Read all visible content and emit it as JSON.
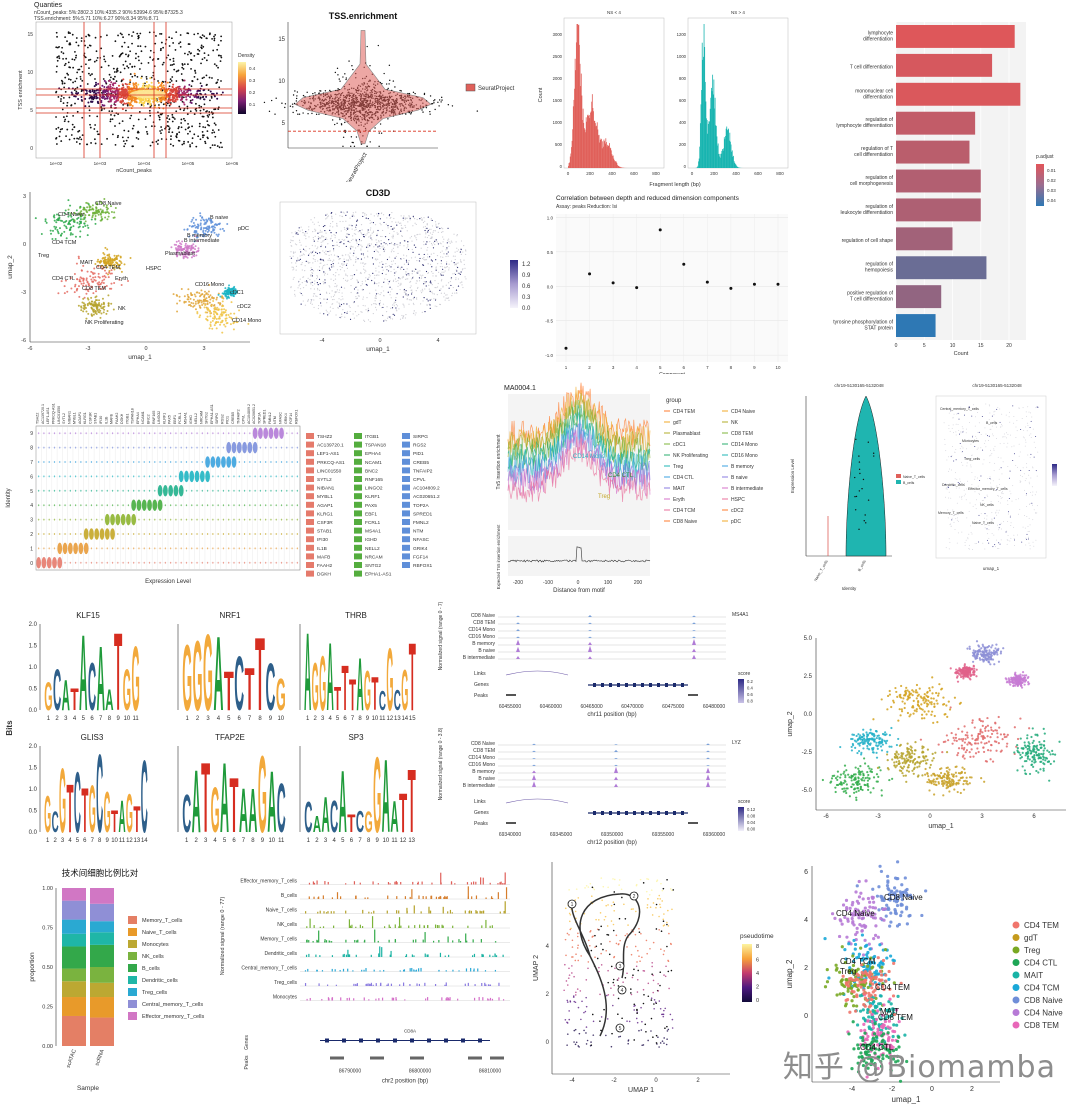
{
  "watermark": "知乎 @Biomamba",
  "chart_data": [
    {
      "id": "p1",
      "type": "scatter",
      "title": "Quanties",
      "subtitle_lines": [
        "nCount_peaks: 5%:2802.3 10%:4335.2 90%:53994.6 95%:87325.3",
        "TSS.enrichment: 5%:5.71 10%:6.27 90%:8.34 95%:8.71"
      ],
      "xlabel": "nCount_peaks",
      "ylabel": "TSS enrichment",
      "xticks": [
        "1e+02",
        "1e+03",
        "1e+04",
        "1e+05",
        "1e+06"
      ],
      "yticks": [
        "0",
        "5",
        "10",
        "15"
      ],
      "legend_title": "Density",
      "legend_ticks": [
        "0.4",
        "0.3",
        "0.2",
        "0.1"
      ]
    },
    {
      "id": "p2",
      "type": "violin",
      "title": "TSS.enrichment",
      "categories": [
        "SeuratProject"
      ],
      "yticks": [
        "5",
        "10",
        "15"
      ],
      "legend": [
        "SeuratProject"
      ],
      "threshold": 4
    },
    {
      "id": "p3",
      "type": "bar",
      "title_left": "NS < 4",
      "title_right": "NS > 4",
      "xlabel": "Fragment length (bp)",
      "ylabel": "Count",
      "xticks": [
        "0",
        "200",
        "400",
        "600",
        "800"
      ],
      "yticks_left": [
        "0",
        "500",
        "1000",
        "1500",
        "2000",
        "2500",
        "3000"
      ],
      "yticks_right": [
        "0",
        "200",
        "400",
        "600",
        "800",
        "1000",
        "1200"
      ]
    },
    {
      "id": "p4",
      "type": "bar",
      "orientation": "horizontal",
      "categories": [
        "lymphocyte differentiation",
        "T cell differentiation",
        "mononuclear cell differentiation",
        "regulation of lymphocyte differentiation",
        "regulation of T cell differentiation",
        "regulation of cell morphogenesis",
        "regulation of leukocyte differentiation",
        "regulation of cell shape",
        "regulation of hemopoiesis",
        "positive regulation of T cell differentiation",
        "tyrosine phosphorylation of STAT protein"
      ],
      "values": [
        21,
        17,
        22,
        14,
        13,
        15,
        15,
        10,
        16,
        8,
        7
      ],
      "padjust": [
        0.001,
        0.003,
        0.002,
        0.008,
        0.01,
        0.012,
        0.013,
        0.016,
        0.03,
        0.02,
        0.045
      ],
      "xlabel": "Count",
      "xticks": [
        "0",
        "5",
        "10",
        "15",
        "20"
      ],
      "xlim": [
        0,
        23
      ],
      "legend_title": "p.adjust",
      "legend_ticks": [
        "0.01",
        "0.02",
        "0.03",
        "0.04"
      ]
    },
    {
      "id": "p5",
      "type": "scatter",
      "xlabel": "umap_1",
      "ylabel": "umap_2",
      "xticks": [
        "-6",
        "-3",
        "0",
        "3"
      ],
      "yticks": [
        "-6",
        "-3",
        "0",
        "3"
      ],
      "labels": [
        "CD8 Naive",
        "CD4 Naive",
        "CD4 TCM",
        "Treg",
        "MAIT",
        "CD4 TEM",
        "CD4 CTL",
        "CD8 TEM",
        "Eryth",
        "NK Proliferating",
        "NK",
        "HSPC",
        "Plasmablast",
        "B memory",
        "B intermediate",
        "B naive",
        "pDC",
        "CD16 Mono",
        "cDC1",
        "cDC2",
        "CD14 Mono"
      ]
    },
    {
      "id": "p6",
      "type": "scatter",
      "title": "CD3D",
      "xlabel": "umap_1",
      "xticks": [
        "-4",
        "0",
        "4"
      ],
      "legend_ticks": [
        "1.2",
        "0.9",
        "0.6",
        "0.3",
        "0.0"
      ]
    },
    {
      "id": "p7",
      "type": "scatter",
      "title": "Correlation between depth and reduced dimension components",
      "subtitle": "Assay: peaks   Reduction: lsi",
      "xlabel": "Component",
      "x": [
        1,
        2,
        3,
        4,
        5,
        6,
        7,
        8,
        9,
        10
      ],
      "y": [
        -0.9,
        0.18,
        0.05,
        -0.02,
        0.82,
        0.32,
        0.06,
        -0.03,
        0.03,
        0.03
      ],
      "yticks": [
        "-1.0",
        "-0.5",
        "0.0",
        "0.5",
        "1.0"
      ],
      "ylim": [
        -1.1,
        1.05
      ]
    },
    {
      "id": "p8",
      "type": "violin",
      "xlabel": "Expression Level",
      "ylabel": "Identity",
      "identities": [
        "0",
        "1",
        "2",
        "3",
        "4",
        "5",
        "6",
        "7",
        "8",
        "9"
      ],
      "legend_columns": [
        [
          "TSHZ2",
          "AC139720.1",
          "LEF1-AS1",
          "PRKCQ-AS1",
          "LINC01550",
          "SYTL2",
          "NIBAN1",
          "MYBL1",
          "AGAP1",
          "KLRG1",
          "CSF3R",
          "STAB1",
          "IFI30",
          "IL1B",
          "MAFB",
          "FAAH2",
          "DGKH"
        ],
        [
          "ITGB1",
          "TSPAN18",
          "EPHA4",
          "NCAM1",
          "BNC2",
          "RNF165",
          "LINGO2",
          "KLRF1",
          "PAX5",
          "EBF1",
          "FCRL1",
          "MS4A1",
          "IGHD",
          "NELL2",
          "NRCAM",
          "SNTG2",
          "EPHA1-AS1"
        ],
        [
          "SIRPG",
          "RGS2",
          "PID1",
          "CREB5",
          "TNFAIP2",
          "CPVL",
          "AC104809.2",
          "AC020651.2",
          "TOP2A",
          "SPRED1",
          "FMNL2",
          "NTM",
          "NFASC",
          "GRIK4",
          "FGF14",
          "RBFOX1"
        ]
      ]
    },
    {
      "id": "p9",
      "type": "line",
      "title": "MA0004.1",
      "xlabel": "Distance from motif",
      "ylabel_top": "Tn5 insertion enrichment",
      "ylabel_bottom": "Expected Tn5 insertion enrichment",
      "xticks": [
        "-200",
        "-100",
        "0",
        "100",
        "200"
      ],
      "annotations": [
        "CD14 Mono",
        "CD4 CTL",
        "Treg"
      ],
      "legend_title": "group",
      "groups": [
        "CD4 TEM",
        "gdT",
        "Plasmablast",
        "cDC1",
        "NK Proliferating",
        "Treg",
        "CD4 CTL",
        "MAIT",
        "Eryth",
        "CD4 TCM",
        "CD8 Naive",
        "CD4 Naive",
        "NK",
        "CD8 TEM",
        "CD14 Mono",
        "CD16 Mono",
        "B memory",
        "B naive",
        "B intermediate",
        "HSPC",
        "cDC2",
        "pDC"
      ]
    },
    {
      "id": "p10",
      "type": "violin",
      "title": "chr19-5130165-5132048",
      "categories": [
        "Naive_T_cells",
        "B_cells"
      ],
      "ylabel": "Expression Level",
      "xlabel": "Identity",
      "legend": [
        "Naive_T_cells",
        "B_cells"
      ]
    },
    {
      "id": "p11",
      "type": "scatter",
      "title": "chr19-5130165-5132048",
      "xlabel": "umap_1",
      "labels": [
        "Central_memory_T_cells",
        "B_cells",
        "Monocytes",
        "Treg_cells",
        "Dendritic_cells",
        "Effector_memory_T_cells",
        "Memory_T_cells",
        "NK_cells",
        "Naive_T_cells"
      ]
    },
    {
      "id": "p12",
      "type": "other",
      "ylabel": "Bits",
      "motifs": [
        "KLF15",
        "NRF1",
        "THRB",
        "GLIS3",
        "TFAP2E",
        "SP3"
      ],
      "yticks": [
        "0.0",
        "0.5",
        "1.0",
        "1.5",
        "2.0"
      ],
      "positions": [
        11,
        10,
        15,
        14,
        11,
        13
      ]
    },
    {
      "id": "p13",
      "type": "area",
      "xlabel": "chr11 position (bp)",
      "xticks": [
        "60455000",
        "60460000",
        "60465000",
        "60470000",
        "60475000",
        "60480000"
      ],
      "gene": "MS4A1",
      "ylabel": "Normalized signal (range 0 - 7)",
      "tracks": [
        "CD8 Naive",
        "CD8 TEM",
        "CD14 Mono",
        "CD16 Mono",
        "B memory",
        "B naive",
        "B intermediate"
      ],
      "side": [
        "Links",
        "Genes",
        "Peaks"
      ],
      "score_title": "score",
      "score_ticks": [
        "0.2",
        "0.4",
        "0.6",
        "0.8"
      ]
    },
    {
      "id": "p14",
      "type": "area",
      "xlabel": "chr12 position (bp)",
      "xticks": [
        "69340000",
        "69345000",
        "69350000",
        "69355000",
        "69360000"
      ],
      "gene": "LYZ",
      "ylabel": "Normalized signal (range 0 - 3.8)",
      "tracks": [
        "CD8 Naive",
        "CD8 TEM",
        "CD14 Mono",
        "CD16 Mono",
        "B memory",
        "B naive",
        "B intermediate"
      ],
      "side": [
        "Links",
        "Genes",
        "Peaks"
      ],
      "score_title": "score",
      "score_ticks": [
        "0.12",
        "0.08",
        "0.04",
        "0.00"
      ]
    },
    {
      "id": "p15",
      "type": "scatter",
      "xlabel": "umap_1",
      "ylabel": "umap_2",
      "xticks": [
        "-6",
        "-3",
        "0",
        "3",
        "6"
      ],
      "yticks": [
        "-5.0",
        "-2.5",
        "0.0",
        "2.5",
        "5.0"
      ]
    },
    {
      "id": "p16",
      "type": "bar",
      "stacked": true,
      "title": "技术间细胞比例比对",
      "categories": [
        "scATAC",
        "scRNA"
      ],
      "xlabel": "Sample",
      "ylabel": "proportion",
      "yticks": [
        "0.00",
        "0.25",
        "0.50",
        "0.75",
        "1.00"
      ],
      "series": [
        {
          "name": "Memory_T_cells",
          "values": [
            0.19,
            0.18
          ],
          "color": "#e47f65"
        },
        {
          "name": "Naive_T_cells",
          "values": [
            0.12,
            0.13
          ],
          "color": "#e89a2a"
        },
        {
          "name": "Monocytes",
          "values": [
            0.1,
            0.09
          ],
          "color": "#bca832"
        },
        {
          "name": "NK_cells",
          "values": [
            0.08,
            0.1
          ],
          "color": "#7ab33f"
        },
        {
          "name": "B_cells",
          "values": [
            0.14,
            0.14
          ],
          "color": "#33a84a"
        },
        {
          "name": "Dendritic_cells",
          "values": [
            0.08,
            0.08
          ],
          "color": "#1fb6a7"
        },
        {
          "name": "Treg_cells",
          "values": [
            0.09,
            0.07
          ],
          "color": "#2aa9d2"
        },
        {
          "name": "Central_memory_T_cells",
          "values": [
            0.12,
            0.11
          ],
          "color": "#8f8fd6"
        },
        {
          "name": "Effector_memory_T_cells",
          "values": [
            0.08,
            0.1
          ],
          "color": "#d177c4"
        }
      ]
    },
    {
      "id": "p17",
      "type": "area",
      "ylabel": "Normalized signal (range 0 - 77)",
      "xlabel": "chr2 position (bp)",
      "xticks": [
        "86790000",
        "86800000",
        "86810000"
      ],
      "gene": "CD8A",
      "tracks": [
        "Effector_memory_T_cells",
        "B_cells",
        "Naive_T_cells",
        "NK_cells",
        "Memory_T_cells",
        "Dendritic_cells",
        "Central_memory_T_cells",
        "Treg_cells",
        "Monocytes"
      ],
      "side": [
        "Genes",
        "Peaks"
      ]
    },
    {
      "id": "p18",
      "type": "scatter",
      "xlabel": "UMAP 1",
      "ylabel": "UMAP 2",
      "xticks": [
        "-4",
        "-2",
        "0",
        "2"
      ],
      "yticks": [
        "0",
        "2",
        "4"
      ],
      "legend_title": "pseudotime",
      "legend_ticks": [
        "8",
        "6",
        "4",
        "2",
        "0"
      ],
      "node_labels": [
        "1",
        "2",
        "3",
        "4",
        "5"
      ]
    },
    {
      "id": "p19",
      "type": "scatter",
      "xlabel": "umap_1",
      "ylabel": "umap_2",
      "xticks": [
        "-4",
        "-2",
        "0",
        "2"
      ],
      "yticks": [
        "0",
        "2",
        "4",
        "6"
      ],
      "labels": [
        "CD8 Naive",
        "CD4 Naive",
        "CD4 TCM",
        "Treg",
        "MAIT",
        "CD8 TEM",
        "CD4 TEM",
        "CD4 CTL"
      ],
      "legend": [
        {
          "name": "CD4 TEM",
          "color": "#f0756c"
        },
        {
          "name": "gdT",
          "color": "#c59b1d"
        },
        {
          "name": "Treg",
          "color": "#79a823"
        },
        {
          "name": "CD4 CTL",
          "color": "#1ea656"
        },
        {
          "name": "MAIT",
          "color": "#18b3a6"
        },
        {
          "name": "CD4 TCM",
          "color": "#1aa8d8"
        },
        {
          "name": "CD8 Naive",
          "color": "#6f8ed8"
        },
        {
          "name": "CD4 Naive",
          "color": "#b77ad6"
        },
        {
          "name": "CD8 TEM",
          "color": "#e867b8"
        }
      ]
    }
  ]
}
